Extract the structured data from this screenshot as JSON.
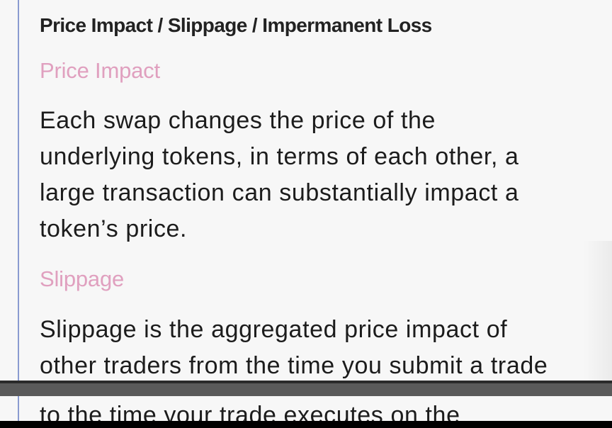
{
  "header": {
    "title": "Price Impact / Slippage / Impermanent Loss"
  },
  "sections": [
    {
      "title": "Price Impact",
      "body_lines": [
        "Each swap changes the price of the",
        "underlying tokens, in terms of each other, a",
        "large transaction can substantially impact a",
        "token’s price."
      ]
    },
    {
      "title": "Slippage",
      "body_lines": [
        "Slippage is the aggregated price impact of",
        "other traders from the time you submit a trade"
      ],
      "cut_off_line": "to the time your trade executes on the"
    }
  ],
  "colors": {
    "accent_pink": "#e0a0bf",
    "rule_blue": "#8a9bd0",
    "background": "#f7f7f7",
    "text": "#1c1c1c"
  }
}
